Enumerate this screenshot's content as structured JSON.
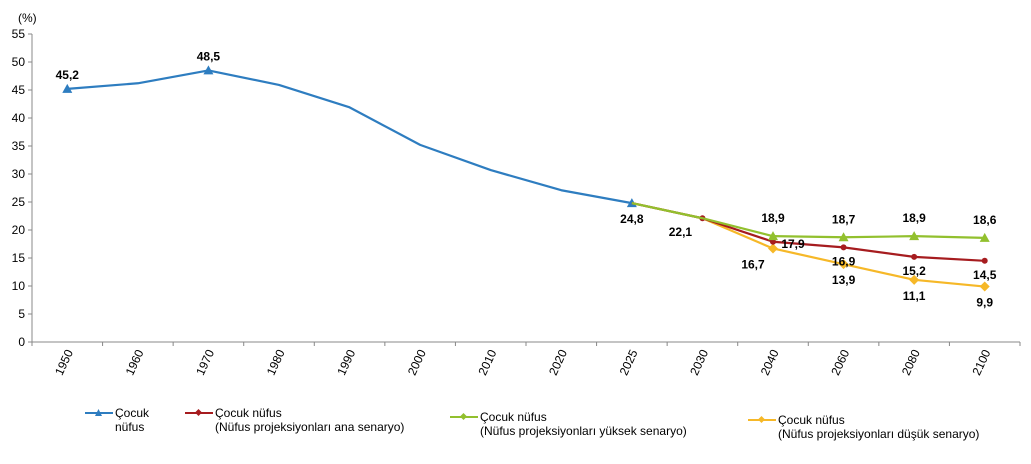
{
  "chart_data": {
    "type": "line",
    "ylabel": "(%)",
    "ylim": [
      0,
      55
    ],
    "yticks": [
      0,
      5,
      10,
      15,
      20,
      25,
      30,
      35,
      40,
      45,
      50,
      55
    ],
    "grid": false,
    "legend_position": "bottom",
    "categories": [
      "1950",
      "1960",
      "1970",
      "1980",
      "1990",
      "2000",
      "2010",
      "2020",
      "2025",
      "2030",
      "2040",
      "2060",
      "2080",
      "2100"
    ],
    "series": [
      {
        "name": "Çocuk nüfus",
        "color": "#2e7dc0",
        "marker": "triangle",
        "values": [
          45.2,
          46.2,
          48.5,
          45.9,
          41.9,
          35.2,
          30.7,
          27.1,
          24.8,
          null,
          null,
          null,
          null,
          null
        ],
        "labels": [
          "45,2",
          null,
          "48,5",
          null,
          null,
          null,
          null,
          null,
          "24,8",
          null,
          null,
          null,
          null,
          null
        ]
      },
      {
        "name": "Çocuk nüfus (Nüfus projeksiyonları ana senaryo)",
        "color": "#a61c1f",
        "marker": "circle",
        "values": [
          null,
          null,
          null,
          null,
          null,
          null,
          null,
          null,
          24.8,
          22.1,
          17.9,
          16.9,
          15.2,
          14.5
        ],
        "labels": [
          null,
          null,
          null,
          null,
          null,
          null,
          null,
          null,
          null,
          "22,1",
          "17,9",
          "16,9",
          "15,2",
          "14,5"
        ]
      },
      {
        "name": "Çocuk nüfus (Nüfus projeksiyonları yüksek senaryo)",
        "color": "#92c02e",
        "marker": "triangle",
        "values": [
          null,
          null,
          null,
          null,
          null,
          null,
          null,
          null,
          24.8,
          22.1,
          18.9,
          18.7,
          18.9,
          18.6
        ],
        "labels": [
          null,
          null,
          null,
          null,
          null,
          null,
          null,
          null,
          null,
          null,
          "18,9",
          "18,7",
          "18,9",
          "18,6"
        ]
      },
      {
        "name": "Çocuk nüfus (Nüfus projeksiyonları düşük senaryo)",
        "color": "#f6b828",
        "marker": "diamond",
        "values": [
          null,
          null,
          null,
          null,
          null,
          null,
          null,
          null,
          24.8,
          22.1,
          16.7,
          13.9,
          11.1,
          9.9
        ],
        "labels": [
          null,
          null,
          null,
          null,
          null,
          null,
          null,
          null,
          null,
          null,
          "16,7",
          "13,9",
          "11,1",
          "9,9"
        ]
      }
    ]
  },
  "legend": [
    {
      "line1": "Çocuk",
      "line2": "nüfus"
    },
    {
      "line1": "Çocuk nüfus",
      "line2": "(Nüfus projeksiyonları ana senaryo)"
    },
    {
      "line1": "Çocuk nüfus",
      "line2": "(Nüfus projeksiyonları yüksek senaryo)"
    },
    {
      "line1": "Çocuk nüfus",
      "line2": "(Nüfus projeksiyonları düşük senaryo)"
    }
  ]
}
